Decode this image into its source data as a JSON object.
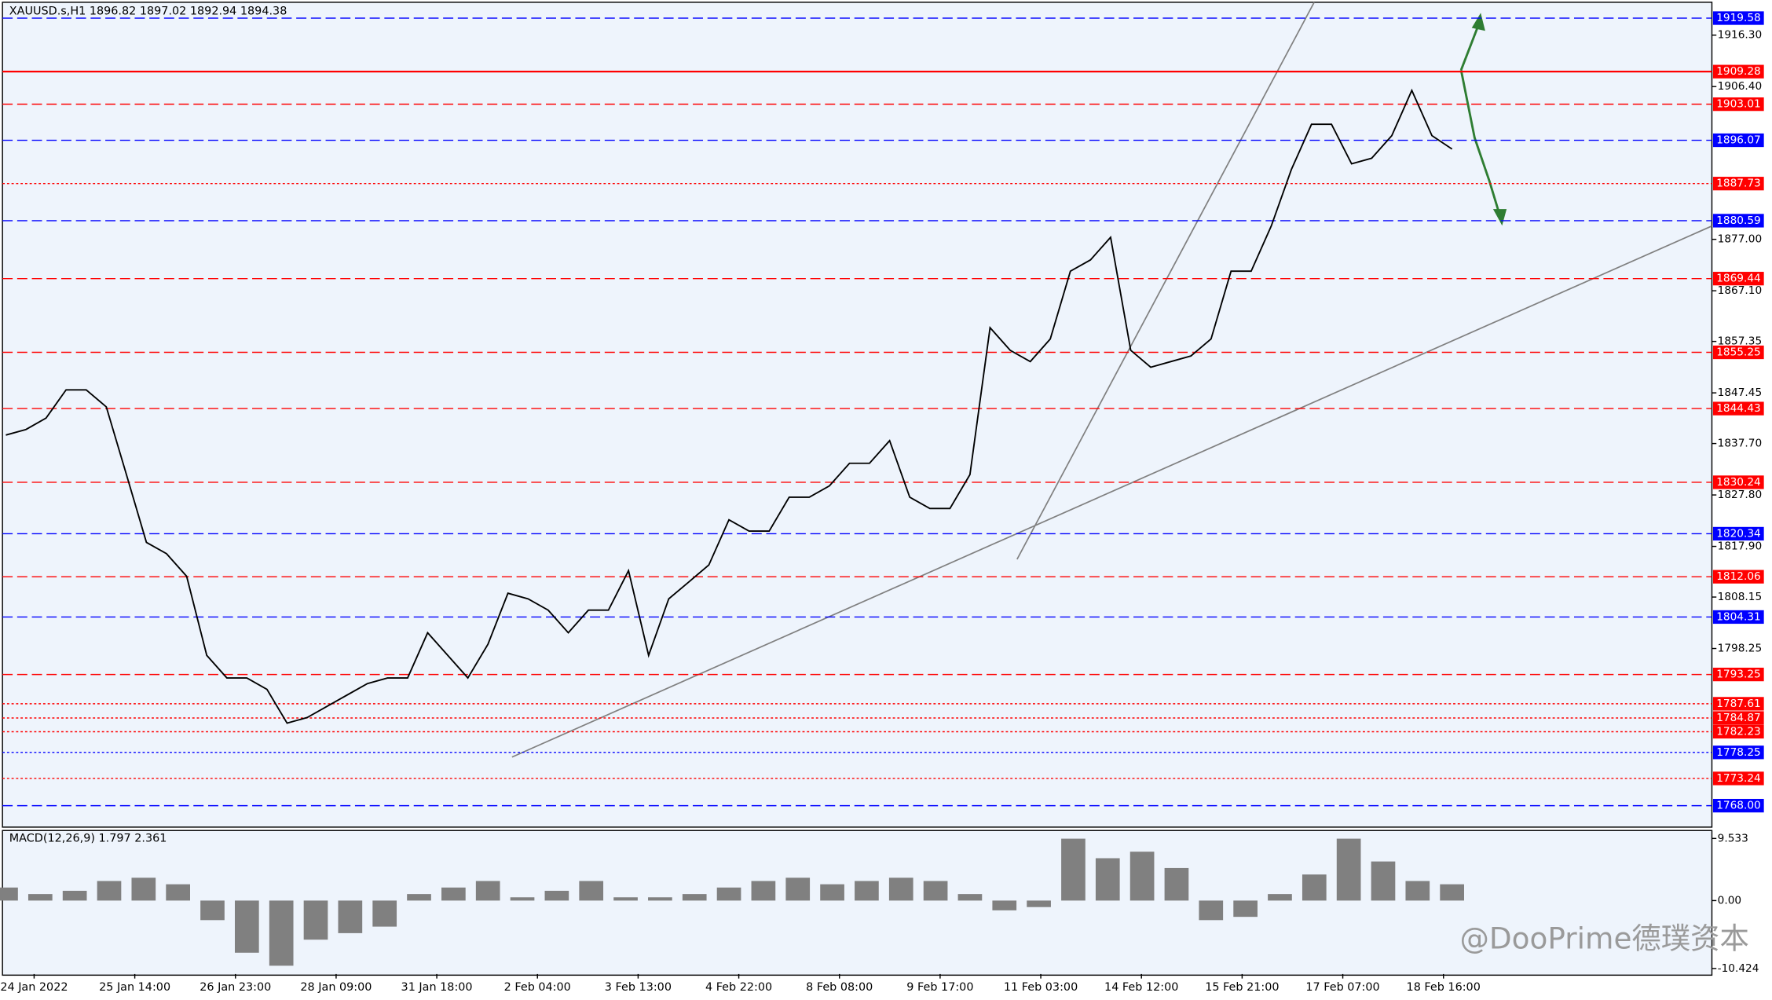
{
  "chart_data": [
    {
      "type": "line",
      "title": "XAUUSD.s,H1  1896.82 1897.02 1892.94 1894.38",
      "watermark": "@DooPrime德璞资本",
      "ylim": [
        1763.87,
        1922.41
      ],
      "yticks": [
        {
          "value": 1916.3,
          "label": "1916.30"
        },
        {
          "value": 1906.4,
          "label": "1906.40"
        },
        {
          "value": 1877,
          "label": "1877.00"
        },
        {
          "value": 1867.1,
          "label": "1867.10"
        },
        {
          "value": 1857.35,
          "label": "1857.35"
        },
        {
          "value": 1847.45,
          "label": "1847.45"
        },
        {
          "value": 1837.7,
          "label": "1837.70"
        },
        {
          "value": 1827.8,
          "label": "1827.80"
        },
        {
          "value": 1817.9,
          "label": "1817.90"
        },
        {
          "value": 1808.15,
          "label": "1808.15"
        },
        {
          "value": 1798.25,
          "label": "1798.25"
        }
      ],
      "time_labels": [
        "24 Jan 2022",
        "25 Jan 14:00",
        "26 Jan 23:00",
        "28 Jan 09:00",
        "31 Jan 18:00",
        "2 Feb 04:00",
        "3 Feb 13:00",
        "4 Feb 22:00",
        "8 Feb 08:00",
        "9 Feb 17:00",
        "11 Feb 03:00",
        "14 Feb 12:00",
        "15 Feb 21:00",
        "17 Feb 07:00",
        "18 Feb 16:00"
      ],
      "levels": [
        {
          "value": 1919.58,
          "color": "#0000ff",
          "style": "dashed"
        },
        {
          "value": 1909.28,
          "color": "#ff0000",
          "style": "solid"
        },
        {
          "value": 1903.01,
          "color": "#ff0000",
          "style": "dashed"
        },
        {
          "value": 1896.07,
          "color": "#0000ff",
          "style": "dashed"
        },
        {
          "value": 1887.73,
          "color": "#ff0000",
          "style": "dotted"
        },
        {
          "value": 1880.59,
          "color": "#0000ff",
          "style": "dashed"
        },
        {
          "value": 1869.44,
          "color": "#ff0000",
          "style": "dashed"
        },
        {
          "value": 1855.25,
          "color": "#ff0000",
          "style": "dashed"
        },
        {
          "value": 1844.43,
          "color": "#ff0000",
          "style": "dashed"
        },
        {
          "value": 1830.24,
          "color": "#ff0000",
          "style": "dashed"
        },
        {
          "value": 1820.34,
          "color": "#0000ff",
          "style": "dashed"
        },
        {
          "value": 1812.06,
          "color": "#ff0000",
          "style": "dashed"
        },
        {
          "value": 1804.31,
          "color": "#0000ff",
          "style": "dashed"
        },
        {
          "value": 1793.25,
          "color": "#ff0000",
          "style": "dashed"
        },
        {
          "value": 1787.61,
          "color": "#ff0000",
          "style": "dotted"
        },
        {
          "value": 1784.87,
          "color": "#ff0000",
          "style": "dotted"
        },
        {
          "value": 1782.23,
          "color": "#ff0000",
          "style": "dotted"
        },
        {
          "value": 1778.25,
          "color": "#0000ff",
          "style": "dotted"
        },
        {
          "value": 1773.24,
          "color": "#ff0000",
          "style": "dotted"
        },
        {
          "value": 1768,
          "label": "1768.00",
          "color": "#0000ff",
          "style": "dashed"
        }
      ],
      "series": [
        {
          "color": "#000000",
          "values": [
            1839.33,
            1840.41,
            1842.59,
            1848.03,
            1848.03,
            1844.76,
            1831.72,
            1818.67,
            1816.49,
            1812.14,
            1796.92,
            1792.57,
            1792.57,
            1790.39,
            1783.87,
            1784.96,
            1787.13,
            1789.31,
            1791.48,
            1792.57,
            1792.57,
            1801.27,
            1796.92,
            1792.57,
            1799.09,
            1808.88,
            1807.79,
            1805.62,
            1801.27,
            1805.62,
            1805.62,
            1813.23,
            1796.92,
            1807.79,
            1811.05,
            1814.32,
            1823.02,
            1820.84,
            1820.84,
            1827.37,
            1827.37,
            1829.54,
            1833.89,
            1833.89,
            1838.24,
            1827.37,
            1825.19,
            1825.19,
            1831.72,
            1859.99,
            1855.64,
            1853.46,
            1857.81,
            1870.86,
            1873.04,
            1877.39,
            1855.64,
            1852.38,
            1853.46,
            1854.55,
            1857.81,
            1870.86,
            1870.86,
            1879.56,
            1890.44,
            1899.14,
            1899.14,
            1891.52,
            1892.61,
            1896.96,
            1905.66,
            1896.96,
            1894.38
          ]
        }
      ]
    },
    {
      "type": "bar",
      "title": "MACD(12,26,9) 1.797 2.361",
      "ylim": [
        -11.27,
        10.75
      ],
      "yticks": [
        {
          "value": 9.533,
          "label": "9.533"
        },
        {
          "value": 0,
          "label": "0.00"
        },
        {
          "value": -10.424,
          "label": "-10.424"
        }
      ],
      "color": "#808080",
      "values": [
        2,
        1,
        1.5,
        3,
        3.5,
        2.5,
        -3,
        -8,
        -10,
        -6,
        -5,
        -4,
        1,
        2,
        3,
        0.5,
        1.5,
        3,
        0.5,
        0.5,
        1,
        2,
        3,
        3.5,
        2.5,
        3,
        3.5,
        3,
        1,
        -1.5,
        -1,
        9.5,
        6.5,
        7.5,
        5,
        -3,
        -2.5,
        1,
        4,
        9.5,
        6,
        3,
        2.5
      ]
    }
  ]
}
